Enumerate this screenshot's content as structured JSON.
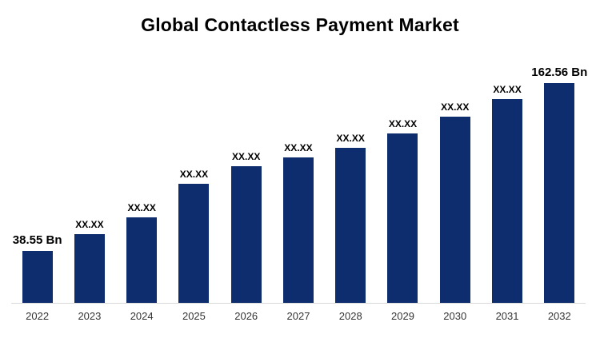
{
  "chart_data": {
    "type": "bar",
    "title": "Global Contactless Payment Market",
    "unit": "Bn",
    "categories": [
      "2022",
      "2023",
      "2024",
      "2025",
      "2026",
      "2027",
      "2028",
      "2029",
      "2030",
      "2031",
      "2032"
    ],
    "values": [
      38.55,
      50.6,
      63.4,
      88.2,
      100.8,
      107.7,
      114.7,
      125.1,
      137.8,
      151.0,
      162.56
    ],
    "bar_labels": [
      "38.55 Bn",
      "XX.XX",
      "XX.XX",
      "XX.XX",
      "XX.XX",
      "XX.XX",
      "XX.XX",
      "XX.XX",
      "XX.XX",
      "XX.XX",
      "162.56 Bn"
    ],
    "first_value_label": "38.55 Bn",
    "last_value_label": "162.56 Bn",
    "bar_color": "#0d2d6e",
    "title_color": "#000000",
    "tick_label_color": "#333333",
    "xlabel": "",
    "ylabel": "",
    "ylim": [
      0,
      162.56
    ],
    "grid": false,
    "legend": false
  }
}
